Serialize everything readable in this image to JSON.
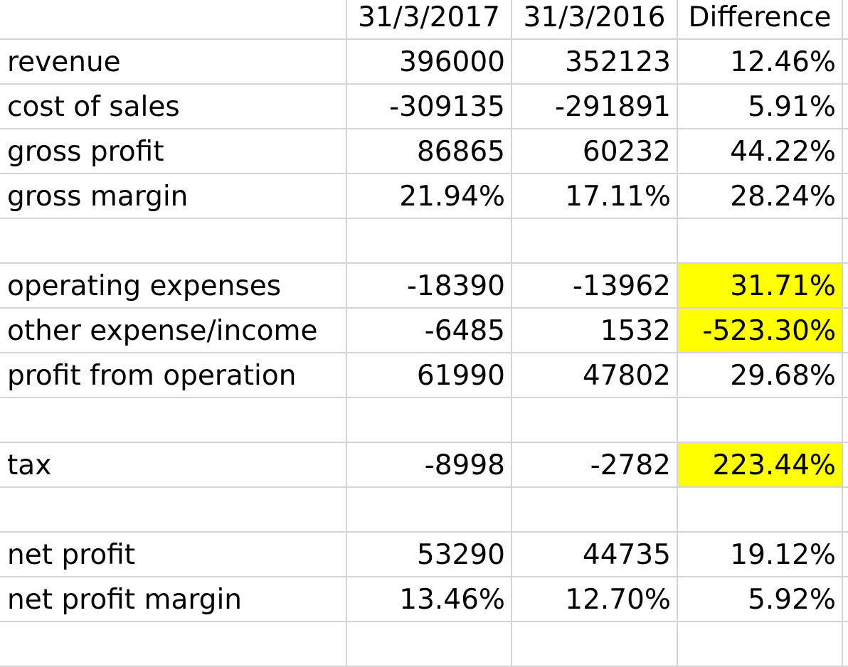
{
  "header": {
    "col_label": "",
    "col_a": "31/3/2017",
    "col_b": "31/3/2016",
    "col_c": "Difference"
  },
  "rows": [
    {
      "label": "revenue",
      "a": "396000",
      "b": "352123",
      "c": "12.46%",
      "highlight": false
    },
    {
      "label": "cost of sales",
      "a": "-309135",
      "b": "-291891",
      "c": "5.91%",
      "highlight": false
    },
    {
      "label": "gross profit",
      "a": "86865",
      "b": "60232",
      "c": "44.22%",
      "highlight": false
    },
    {
      "label": "gross margin",
      "a": "21.94%",
      "b": "17.11%",
      "c": "28.24%",
      "highlight": false
    },
    {
      "label": "",
      "a": "",
      "b": "",
      "c": "",
      "highlight": false
    },
    {
      "label": "operating expenses",
      "a": "-18390",
      "b": "-13962",
      "c": "31.71%",
      "highlight": true
    },
    {
      "label": "other expense/income",
      "a": "-6485",
      "b": "1532",
      "c": "-523.30%",
      "highlight": true
    },
    {
      "label": "profit from operation",
      "a": "61990",
      "b": "47802",
      "c": "29.68%",
      "highlight": false
    },
    {
      "label": "",
      "a": "",
      "b": "",
      "c": "",
      "highlight": false
    },
    {
      "label": "tax",
      "a": "-8998",
      "b": "-2782",
      "c": "223.44%",
      "highlight": true
    },
    {
      "label": "",
      "a": "",
      "b": "",
      "c": "",
      "highlight": false
    },
    {
      "label": "net profit",
      "a": "53290",
      "b": "44735",
      "c": "19.12%",
      "highlight": false
    },
    {
      "label": "net profit margin",
      "a": "13.46%",
      "b": "12.70%",
      "c": "5.92%",
      "highlight": false
    },
    {
      "label": "",
      "a": "",
      "b": "",
      "c": "",
      "highlight": false
    }
  ],
  "colors": {
    "highlight": "#ffff00",
    "gridline": "#d4d4d4"
  }
}
